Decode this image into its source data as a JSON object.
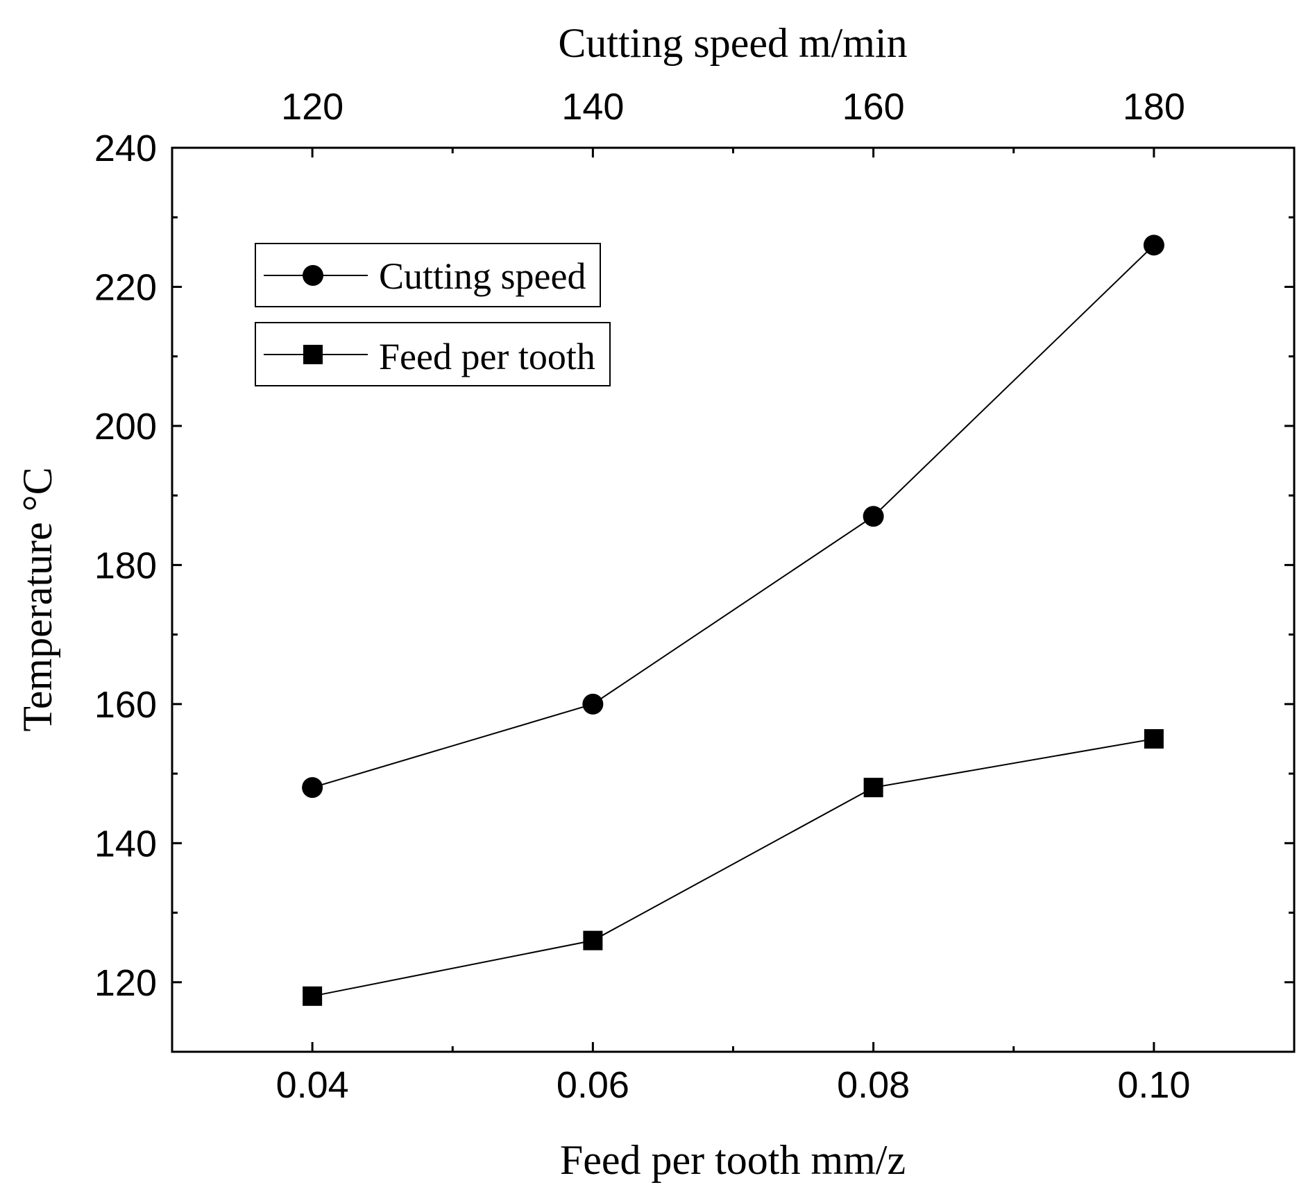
{
  "chart_data": {
    "type": "line",
    "title": "",
    "ylabel": "Temperature °C",
    "xlabel_bottom": "Feed per tooth mm/z",
    "xlabel_top": "Cutting speed m/min",
    "ylim": [
      110,
      240
    ],
    "yticks": [
      120,
      140,
      160,
      180,
      200,
      220,
      240
    ],
    "xlim_bottom": [
      0.03,
      0.11
    ],
    "xticks_bottom": [
      "0.04",
      "0.06",
      "0.08",
      "0.10"
    ],
    "xticks_bottom_values": [
      0.04,
      0.06,
      0.08,
      0.1
    ],
    "xticks_top": [
      "120",
      "140",
      "160",
      "180"
    ],
    "xticks_top_values": [
      120,
      140,
      160,
      180
    ],
    "xlim_top": [
      110,
      190
    ],
    "grid": false,
    "legend_position": "top-left",
    "series": [
      {
        "name": "Cutting speed",
        "marker": "circle",
        "axis": "top",
        "x": [
          120,
          140,
          160,
          180
        ],
        "values": [
          148,
          160,
          187,
          226
        ]
      },
      {
        "name": "Feed per tooth",
        "marker": "square",
        "axis": "bottom",
        "x": [
          0.04,
          0.06,
          0.08,
          0.1
        ],
        "values": [
          118,
          126,
          148,
          155
        ]
      }
    ],
    "colors": {
      "line": "#000000",
      "marker": "#000000"
    }
  }
}
